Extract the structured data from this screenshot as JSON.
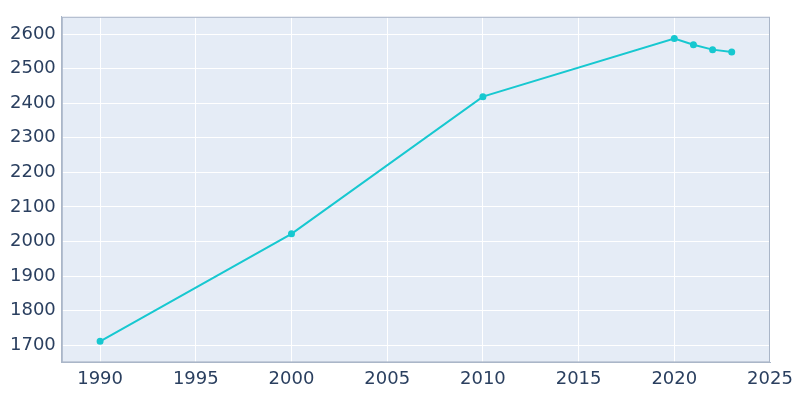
{
  "chart_data": {
    "type": "line",
    "x": [
      1990,
      2000,
      2010,
      2020,
      2021,
      2022,
      2023
    ],
    "values": [
      1711,
      2022,
      2419,
      2587,
      2569,
      2555,
      2548
    ],
    "color": "#17c8d0",
    "marker": "circle",
    "xlim": [
      1988,
      2025
    ],
    "xticks": [
      1990,
      1995,
      2000,
      2005,
      2010,
      2015,
      2020,
      2025
    ],
    "ylim": [
      1650,
      2650
    ],
    "yticks": [
      1700,
      1800,
      1900,
      2000,
      2100,
      2200,
      2300,
      2400,
      2500,
      2600
    ],
    "grid": true
  }
}
